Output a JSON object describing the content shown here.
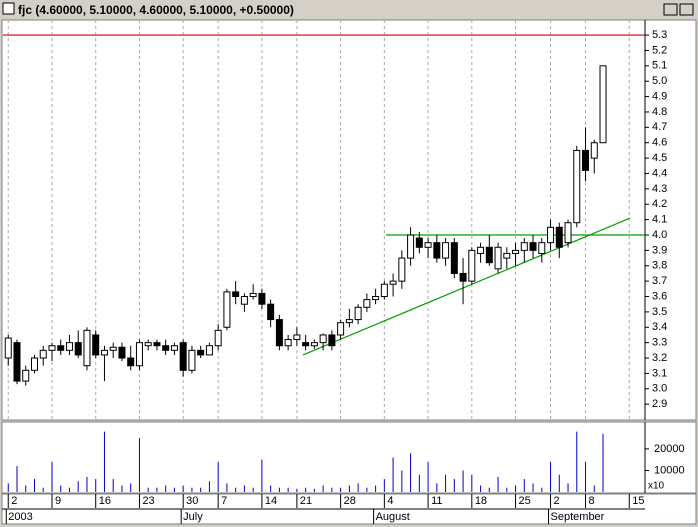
{
  "window_title": "fjc (4.60000, 5.10000, 4.60000, 5.10000, +0.50000)",
  "chart_data": {
    "type": "candlestick",
    "ylim": [
      2.81,
      5.385
    ],
    "yticks": [
      2.9,
      {
        "value": 3.0,
        "label": "3.0"
      },
      3.1,
      3.2,
      3.3,
      3.4,
      3.5,
      3.6,
      3.7,
      3.8,
      3.9,
      {
        "value": 4.0,
        "label": "4.0"
      },
      4.1,
      4.2,
      4.3,
      4.4,
      4.5,
      4.6,
      4.7,
      4.8,
      4.9,
      {
        "value": 5.0,
        "label": "5.0"
      },
      5.1,
      5.2,
      5.3
    ],
    "xlim": [
      -0.6,
      72.8
    ],
    "xticks": [
      {
        "value": 0,
        "label": "2"
      },
      {
        "value": 5,
        "label": "9"
      },
      {
        "value": 10,
        "label": "16"
      },
      {
        "value": 15,
        "label": "23"
      },
      {
        "value": 20,
        "label": "30"
      },
      {
        "value": 24,
        "label": "7"
      },
      {
        "value": 29,
        "label": "14"
      },
      {
        "value": 33,
        "label": "21"
      },
      {
        "value": 38,
        "label": "28"
      },
      {
        "value": 43,
        "label": "4"
      },
      {
        "value": 48,
        "label": "11"
      },
      {
        "value": 53,
        "label": "18"
      },
      {
        "value": 58,
        "label": "25"
      },
      {
        "value": 62,
        "label": "2"
      },
      {
        "value": 66,
        "label": "8"
      },
      {
        "value": 71,
        "label": "15"
      }
    ],
    "month_labels": [
      {
        "value": 0,
        "label": "2003"
      },
      {
        "value": 20,
        "label": "July"
      },
      {
        "value": 42,
        "label": "August"
      },
      {
        "value": 62,
        "label": "September"
      }
    ],
    "open": [
      3.2,
      3.3,
      3.05,
      3.12,
      3.2,
      3.25,
      3.28,
      3.25,
      3.3,
      3.15,
      3.35,
      3.22,
      3.25,
      3.27,
      3.2,
      3.15,
      3.28,
      3.3,
      3.28,
      3.25,
      3.3,
      3.12,
      3.25,
      3.22,
      3.28,
      3.4,
      3.63,
      3.55,
      3.6,
      3.62,
      3.55,
      3.45,
      3.28,
      3.32,
      3.3,
      3.28,
      3.3,
      3.35,
      3.35,
      3.43,
      3.45,
      3.53,
      3.58,
      3.6,
      3.68,
      3.7,
      3.85,
      3.98,
      3.92,
      3.95,
      3.85,
      3.95,
      3.75,
      3.7,
      3.88,
      3.92,
      3.78,
      3.85,
      3.88,
      3.9,
      3.95,
      3.88,
      3.95,
      4.05,
      3.95,
      4.08,
      4.55,
      4.5,
      4.6
    ],
    "high": [
      3.35,
      3.32,
      3.15,
      3.22,
      3.28,
      3.3,
      3.32,
      3.35,
      3.38,
      3.4,
      3.38,
      3.28,
      3.3,
      3.3,
      3.28,
      3.32,
      3.32,
      3.32,
      3.32,
      3.3,
      3.32,
      3.28,
      3.28,
      3.3,
      3.42,
      3.65,
      3.7,
      3.62,
      3.68,
      3.65,
      3.58,
      3.48,
      3.35,
      3.4,
      3.35,
      3.32,
      3.36,
      3.38,
      3.45,
      3.52,
      3.55,
      3.62,
      3.65,
      3.7,
      3.75,
      3.9,
      4.05,
      4.02,
      3.98,
      4.0,
      3.98,
      3.98,
      3.85,
      3.92,
      3.95,
      4.0,
      3.95,
      3.92,
      3.95,
      3.98,
      4.0,
      3.98,
      4.1,
      4.08,
      4.1,
      4.58,
      4.7,
      4.62,
      5.1
    ],
    "low": [
      3.15,
      3.03,
      3.02,
      3.1,
      3.15,
      3.18,
      3.22,
      3.22,
      3.2,
      3.12,
      3.2,
      3.05,
      3.2,
      3.18,
      3.12,
      3.12,
      3.25,
      3.25,
      3.22,
      3.22,
      3.08,
      3.1,
      3.2,
      3.22,
      3.25,
      3.38,
      3.55,
      3.5,
      3.58,
      3.52,
      3.4,
      3.25,
      3.25,
      3.28,
      3.25,
      3.26,
      3.25,
      3.25,
      3.32,
      3.4,
      3.42,
      3.5,
      3.55,
      3.58,
      3.6,
      3.65,
      3.8,
      3.88,
      3.85,
      3.82,
      3.8,
      3.72,
      3.55,
      3.68,
      3.82,
      3.8,
      3.75,
      3.78,
      3.8,
      3.82,
      3.85,
      3.82,
      3.9,
      3.85,
      3.92,
      4.05,
      4.35,
      4.4,
      4.6
    ],
    "close": [
      3.33,
      3.05,
      3.12,
      3.2,
      3.25,
      3.28,
      3.25,
      3.3,
      3.22,
      3.38,
      3.22,
      3.25,
      3.27,
      3.2,
      3.15,
      3.3,
      3.3,
      3.28,
      3.25,
      3.28,
      3.12,
      3.25,
      3.22,
      3.28,
      3.38,
      3.63,
      3.6,
      3.6,
      3.62,
      3.55,
      3.45,
      3.28,
      3.32,
      3.35,
      3.28,
      3.3,
      3.35,
      3.28,
      3.43,
      3.45,
      3.53,
      3.58,
      3.6,
      3.68,
      3.7,
      3.85,
      4.0,
      3.92,
      3.95,
      3.85,
      3.95,
      3.75,
      3.7,
      3.9,
      3.92,
      3.82,
      3.92,
      3.88,
      3.9,
      3.95,
      3.9,
      3.95,
      4.05,
      3.92,
      4.08,
      4.55,
      4.42,
      4.6,
      5.1
    ],
    "volume": [
      4000,
      12000,
      3000,
      6000,
      2000,
      14000,
      3000,
      2000,
      5000,
      7000,
      6000,
      28000,
      6000,
      3000,
      4000,
      25000,
      2000,
      2000,
      3000,
      2000,
      3000,
      2000,
      2000,
      5000,
      14000,
      4000,
      2000,
      3000,
      2000,
      15000,
      3000,
      2000,
      2000,
      1500,
      2000,
      1500,
      3000,
      2000,
      2000,
      3000,
      4000,
      2000,
      3000,
      6000,
      16000,
      10000,
      18000,
      8000,
      14000,
      4000,
      8000,
      6000,
      10000,
      8000,
      3000,
      2000,
      7000,
      2000,
      3000,
      6000,
      4000,
      2000,
      14000,
      8000,
      4000,
      28000,
      14000,
      3000,
      27000
    ],
    "volume_ylim": [
      0,
      32000
    ],
    "volume_yticks": [
      {
        "value": 10000,
        "label": "10000"
      },
      {
        "value": 20000,
        "label": "20000"
      }
    ],
    "volume_multiplier": "x10",
    "volume_color": "#0000cc",
    "lines": [
      {
        "color": "#cc0000",
        "x": [
          -0.6,
          72.8
        ],
        "y": [
          5.3,
          5.3
        ]
      },
      {
        "color": "#00a000",
        "x": [
          43.2,
          72.8
        ],
        "y": [
          4.0,
          4.0
        ]
      },
      {
        "color": "#00a000",
        "x": [
          33.7,
          71.1
        ],
        "y": [
          3.22,
          4.11
        ]
      }
    ]
  }
}
